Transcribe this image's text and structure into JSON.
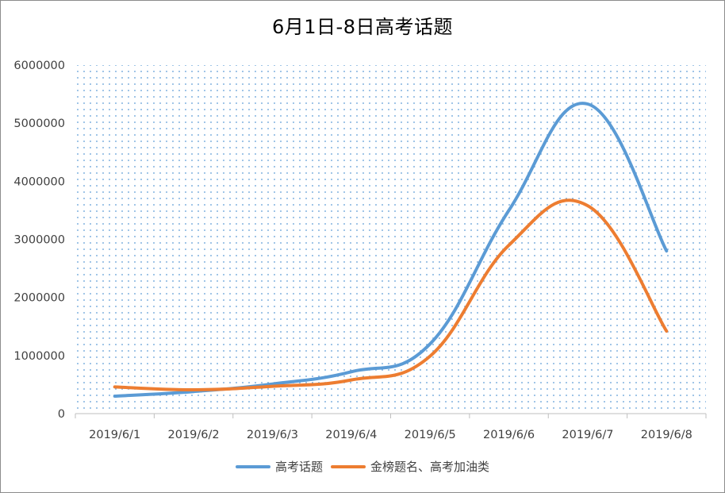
{
  "chart_data": {
    "type": "line",
    "title": "6月1日-8日高考话题",
    "categories": [
      "2019/6/1",
      "2019/6/2",
      "2019/6/3",
      "2019/6/4",
      "2019/6/5",
      "2019/6/6",
      "2019/6/7",
      "2019/6/8"
    ],
    "ylim": [
      0,
      6000000
    ],
    "yticks": [
      "0",
      "1000000",
      "2000000",
      "3000000",
      "4000000",
      "5000000",
      "6000000"
    ],
    "legend_position": "bottom",
    "grid": "dotted plot area",
    "series": [
      {
        "name": "高考话题",
        "color": "#5b9bd5",
        "values": [
          300000,
          380000,
          510000,
          720000,
          1200000,
          3500000,
          5330000,
          2800000
        ]
      },
      {
        "name": "金榜题名、高考加油类",
        "color": "#ed7d31",
        "values": [
          460000,
          410000,
          470000,
          580000,
          990000,
          2900000,
          3580000,
          1420000
        ]
      }
    ],
    "plot_dot_color": "#5b9bd5"
  }
}
